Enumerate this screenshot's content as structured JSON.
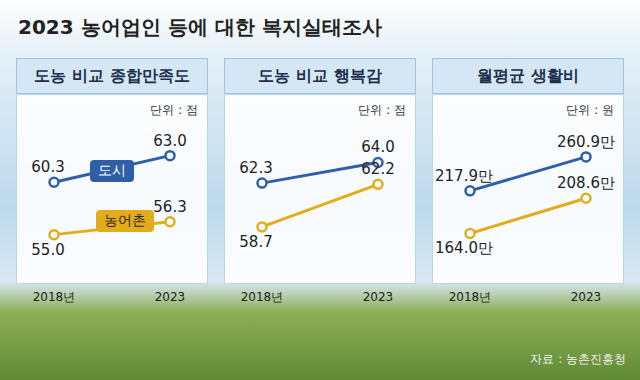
{
  "title": "2023 농어업인 등에 대한 복지실태조사",
  "source": "자료 : 농촌진흥청",
  "chart_data": [
    {
      "type": "line",
      "title": "도농 비교 종합만족도",
      "subtitle": "단위 : 점",
      "categories": [
        "2018년",
        "2023"
      ],
      "ylim": [
        50,
        66
      ],
      "tick_labels": "x",
      "data_labels": true,
      "legend": "upper left",
      "series": [
        {
          "name": "도시",
          "color": "#2f5fa8",
          "marker": "circle",
          "values": [
            60.3,
            63.0
          ],
          "value_labels": [
            "60.3",
            "63.0"
          ]
        },
        {
          "name": "농어촌",
          "color": "#e2ac1c",
          "marker": "circle",
          "values": [
            55.0,
            56.3
          ],
          "value_labels": [
            "55.0",
            "56.3"
          ]
        }
      ]
    },
    {
      "type": "line",
      "title": "도농 비교 행복감",
      "subtitle": "단위 : 점",
      "categories": [
        "2018년",
        "2023"
      ],
      "ylim": [
        54,
        67
      ],
      "tick_labels": "x",
      "data_labels": true,
      "series": [
        {
          "name": "도시",
          "color": "#2f5fa8",
          "marker": "circle",
          "values": [
            62.3,
            64.0
          ],
          "value_labels": [
            "62.3",
            "64.0"
          ]
        },
        {
          "name": "농어촌",
          "color": "#e2ac1c",
          "marker": "circle",
          "values": [
            58.7,
            62.2
          ],
          "value_labels": [
            "58.7",
            "62.2"
          ]
        }
      ]
    },
    {
      "type": "line",
      "title": "월평균 생활비",
      "subtitle": "단위 : 원",
      "categories": [
        "2018년",
        "2023"
      ],
      "ylim": [
        1000000,
        3000000
      ],
      "tick_labels": "x",
      "data_labels": true,
      "series": [
        {
          "name": "도시",
          "color": "#2f5fa8",
          "marker": "circle",
          "values": [
            2179000,
            2609000
          ],
          "value_labels": [
            "217.9만",
            "260.9만"
          ]
        },
        {
          "name": "농어촌",
          "color": "#e2ac1c",
          "marker": "circle",
          "values": [
            1640000,
            2086000
          ],
          "value_labels": [
            "164.0만",
            "208.6만"
          ]
        }
      ]
    }
  ]
}
